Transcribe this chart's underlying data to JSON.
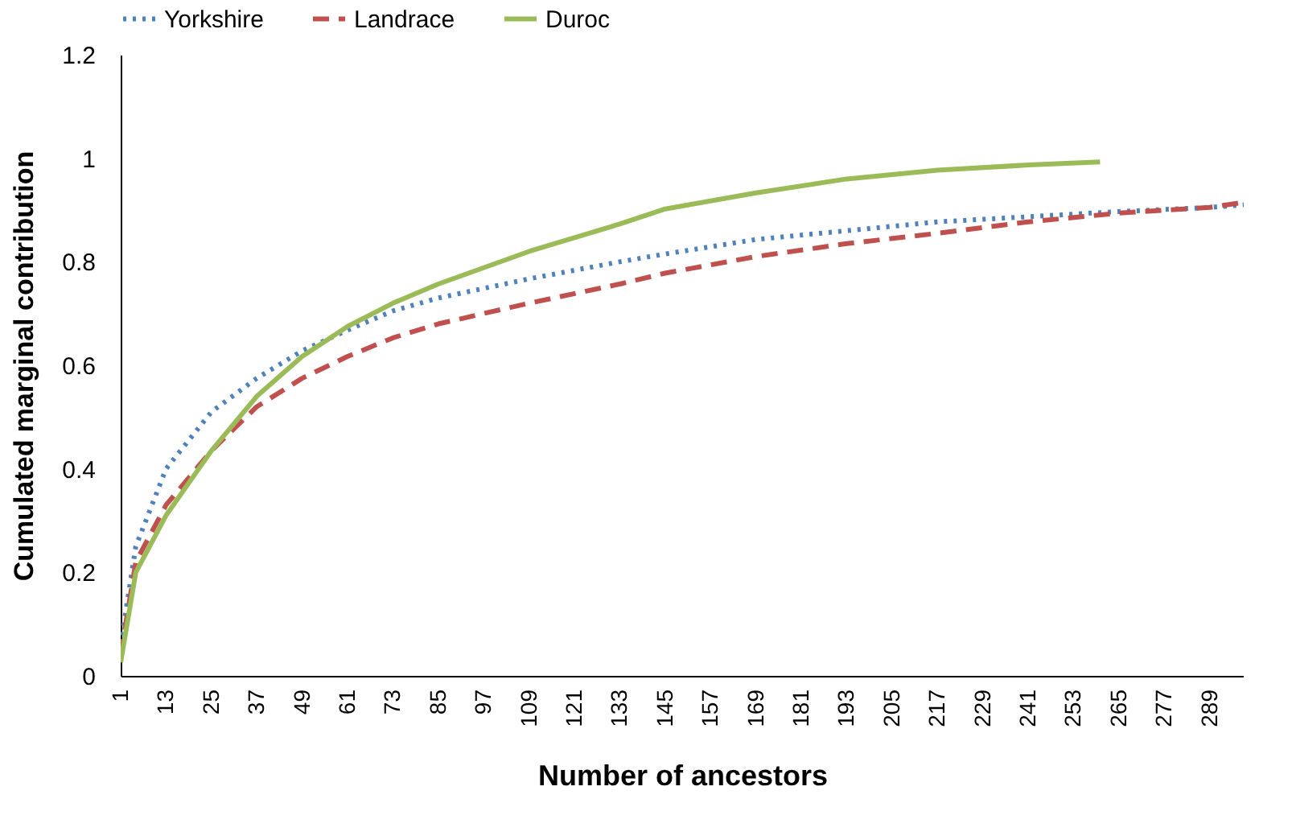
{
  "chart_data": {
    "type": "line",
    "xlabel": "Number of ancestors",
    "ylabel": "Cumulated marginal contribution",
    "xlim": [
      1,
      298
    ],
    "xticks": [
      1,
      13,
      25,
      37,
      49,
      61,
      73,
      85,
      97,
      109,
      121,
      133,
      145,
      157,
      169,
      181,
      193,
      205,
      217,
      229,
      241,
      253,
      265,
      277,
      289
    ],
    "ylim": [
      0,
      1.2
    ],
    "yticks": [
      0,
      0.2,
      0.4,
      0.6,
      0.8,
      1,
      1.2
    ],
    "grid": false,
    "legend": "top",
    "marker": "none",
    "series": [
      {
        "name": "Yorkshire",
        "color": "#4f81bd",
        "line_style": "dotted",
        "x": [
          1,
          5,
          13,
          25,
          37,
          49,
          61,
          73,
          85,
          109,
          133,
          145,
          169,
          193,
          217,
          241,
          265,
          289,
          298
        ],
        "values": [
          0.06,
          0.25,
          0.4,
          0.51,
          0.575,
          0.628,
          0.668,
          0.705,
          0.73,
          0.767,
          0.8,
          0.815,
          0.843,
          0.86,
          0.877,
          0.887,
          0.897,
          0.905,
          0.91
        ]
      },
      {
        "name": "Landrace",
        "color": "#c0504d",
        "line_style": "dashed",
        "x": [
          1,
          5,
          13,
          25,
          37,
          49,
          61,
          73,
          85,
          109,
          133,
          145,
          169,
          193,
          217,
          241,
          265,
          289,
          298
        ],
        "values": [
          0.04,
          0.22,
          0.33,
          0.435,
          0.52,
          0.575,
          0.617,
          0.653,
          0.68,
          0.72,
          0.757,
          0.778,
          0.81,
          0.835,
          0.855,
          0.877,
          0.894,
          0.905,
          0.915
        ]
      },
      {
        "name": "Duroc",
        "color": "#9bbb59",
        "line_style": "solid",
        "x": [
          1,
          5,
          13,
          25,
          37,
          49,
          61,
          73,
          85,
          109,
          133,
          145,
          169,
          193,
          217,
          241,
          260
        ],
        "values": [
          0.026,
          0.2,
          0.31,
          0.435,
          0.54,
          0.617,
          0.675,
          0.72,
          0.757,
          0.82,
          0.873,
          0.902,
          0.933,
          0.96,
          0.977,
          0.987,
          0.993
        ]
      }
    ]
  }
}
